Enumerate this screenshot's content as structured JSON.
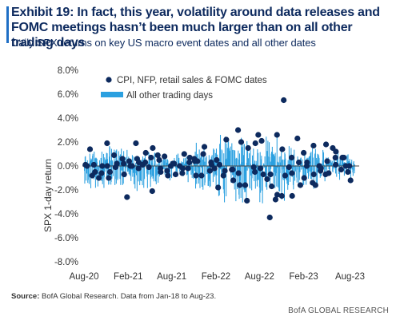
{
  "header": {
    "title": "Exhibit 19: In fact, this year, volatility around data releases and FOMC meetings hasn’t been much larger than on all other trading days",
    "subtitle": "Daily SPX returns on key US macro event dates and all other dates"
  },
  "footer": {
    "source_label": "Source:",
    "source_text": "BofA Global Research. Data from Jan-18 to Aug-23.",
    "brand": "BofA GLOBAL RESEARCH"
  },
  "colors": {
    "title": "#0d2a5e",
    "bars": "#2ba0e0",
    "dots": "#0d2a5e",
    "axis_text": "#333333",
    "zero_line": "#444444"
  },
  "chart_data": {
    "type": "scatter",
    "ylabel": "SPX 1-day return",
    "ylim": [
      -8,
      8
    ],
    "yticks": [
      -8,
      -6,
      -4,
      -2,
      0,
      2,
      4,
      6,
      8
    ],
    "ytick_labels": [
      "-8.0%",
      "-6.0%",
      "-4.0%",
      "-2.0%",
      "0.0%",
      "2.0%",
      "4.0%",
      "6.0%",
      "8.0%"
    ],
    "x_range": [
      "2020-08-01",
      "2023-08-31"
    ],
    "x_ticks": [
      "2020-08-01",
      "2021-02-01",
      "2021-08-01",
      "2022-02-01",
      "2022-08-01",
      "2023-02-01",
      "2023-08-01"
    ],
    "x_tick_labels": [
      "Aug-20",
      "Feb-21",
      "Aug-21",
      "Feb-22",
      "Aug-22",
      "Feb-23",
      "Aug-23"
    ],
    "grid": false,
    "legend": "top-left",
    "series": [
      {
        "name": "CPI, NFP, retail sales & FOMC dates",
        "kind": "dots",
        "points": [
          {
            "date": "2020-08-07",
            "value": 0.1
          },
          {
            "date": "2020-08-14",
            "value": 0.0
          },
          {
            "date": "2020-08-26",
            "value": 1.4
          },
          {
            "date": "2020-09-04",
            "value": -0.8
          },
          {
            "date": "2020-09-11",
            "value": 0.1
          },
          {
            "date": "2020-09-16",
            "value": -0.5
          },
          {
            "date": "2020-10-02",
            "value": -1.0
          },
          {
            "date": "2020-10-13",
            "value": -0.6
          },
          {
            "date": "2020-10-16",
            "value": 0.0
          },
          {
            "date": "2020-11-05",
            "value": 1.9
          },
          {
            "date": "2020-11-06",
            "value": 0.0
          },
          {
            "date": "2020-11-12",
            "value": -1.0
          },
          {
            "date": "2020-11-17",
            "value": -0.5
          },
          {
            "date": "2020-12-04",
            "value": 0.9
          },
          {
            "date": "2020-12-10",
            "value": -0.1
          },
          {
            "date": "2020-12-16",
            "value": 0.2
          },
          {
            "date": "2021-01-08",
            "value": 0.6
          },
          {
            "date": "2021-01-13",
            "value": 0.2
          },
          {
            "date": "2021-01-15",
            "value": -0.7
          },
          {
            "date": "2021-01-27",
            "value": -2.6
          },
          {
            "date": "2021-02-05",
            "value": 0.4
          },
          {
            "date": "2021-02-10",
            "value": 0.0
          },
          {
            "date": "2021-02-17",
            "value": 0.0
          },
          {
            "date": "2021-03-05",
            "value": 1.9
          },
          {
            "date": "2021-03-10",
            "value": 0.6
          },
          {
            "date": "2021-03-16",
            "value": -0.2
          },
          {
            "date": "2021-03-17",
            "value": 0.3
          },
          {
            "date": "2021-04-02",
            "value": 0.1
          },
          {
            "date": "2021-04-13",
            "value": 0.3
          },
          {
            "date": "2021-04-15",
            "value": 1.1
          },
          {
            "date": "2021-04-28",
            "value": -0.1
          },
          {
            "date": "2021-05-07",
            "value": 0.7
          },
          {
            "date": "2021-05-12",
            "value": -2.1
          },
          {
            "date": "2021-05-14",
            "value": 1.5
          },
          {
            "date": "2021-06-04",
            "value": 0.9
          },
          {
            "date": "2021-06-10",
            "value": 0.5
          },
          {
            "date": "2021-06-15",
            "value": -0.2
          },
          {
            "date": "2021-06-16",
            "value": -0.5
          },
          {
            "date": "2021-07-02",
            "value": 0.8
          },
          {
            "date": "2021-07-13",
            "value": -0.4
          },
          {
            "date": "2021-07-16",
            "value": -0.8
          },
          {
            "date": "2021-07-28",
            "value": 0.0
          },
          {
            "date": "2021-08-06",
            "value": 0.2
          },
          {
            "date": "2021-08-11",
            "value": 0.2
          },
          {
            "date": "2021-08-17",
            "value": -0.7
          },
          {
            "date": "2021-09-03",
            "value": 0.0
          },
          {
            "date": "2021-09-14",
            "value": -0.6
          },
          {
            "date": "2021-09-16",
            "value": -0.2
          },
          {
            "date": "2021-09-22",
            "value": 1.0
          },
          {
            "date": "2021-10-08",
            "value": -0.2
          },
          {
            "date": "2021-10-13",
            "value": 0.3
          },
          {
            "date": "2021-10-15",
            "value": 0.7
          },
          {
            "date": "2021-11-03",
            "value": 0.6
          },
          {
            "date": "2021-11-05",
            "value": 0.4
          },
          {
            "date": "2021-11-10",
            "value": -0.8
          },
          {
            "date": "2021-11-16",
            "value": 0.4
          },
          {
            "date": "2021-12-03",
            "value": -0.8
          },
          {
            "date": "2021-12-10",
            "value": 1.0
          },
          {
            "date": "2021-12-15",
            "value": 1.6
          },
          {
            "date": "2022-01-07",
            "value": -0.4
          },
          {
            "date": "2022-01-12",
            "value": 0.3
          },
          {
            "date": "2022-01-14",
            "value": 0.1
          },
          {
            "date": "2022-01-26",
            "value": -0.2
          },
          {
            "date": "2022-02-04",
            "value": 0.5
          },
          {
            "date": "2022-02-10",
            "value": -1.8
          },
          {
            "date": "2022-02-16",
            "value": 0.1
          },
          {
            "date": "2022-03-04",
            "value": -0.8
          },
          {
            "date": "2022-03-10",
            "value": -0.4
          },
          {
            "date": "2022-03-16",
            "value": 2.2
          },
          {
            "date": "2022-04-08",
            "value": -0.3
          },
          {
            "date": "2022-04-12",
            "value": -0.3
          },
          {
            "date": "2022-04-14",
            "value": -1.2
          },
          {
            "date": "2022-05-04",
            "value": 3.0
          },
          {
            "date": "2022-05-06",
            "value": -0.6
          },
          {
            "date": "2022-05-11",
            "value": -1.6
          },
          {
            "date": "2022-05-17",
            "value": 2.0
          },
          {
            "date": "2022-06-03",
            "value": -1.6
          },
          {
            "date": "2022-06-10",
            "value": -2.9
          },
          {
            "date": "2022-06-15",
            "value": 1.5
          },
          {
            "date": "2022-07-08",
            "value": -0.1
          },
          {
            "date": "2022-07-13",
            "value": -0.5
          },
          {
            "date": "2022-07-15",
            "value": 1.9
          },
          {
            "date": "2022-07-27",
            "value": 2.6
          },
          {
            "date": "2022-08-05",
            "value": -0.2
          },
          {
            "date": "2022-08-10",
            "value": 2.1
          },
          {
            "date": "2022-08-17",
            "value": -0.7
          },
          {
            "date": "2022-09-02",
            "value": -1.1
          },
          {
            "date": "2022-09-13",
            "value": -4.3
          },
          {
            "date": "2022-09-16",
            "value": -0.7
          },
          {
            "date": "2022-09-21",
            "value": -1.7
          },
          {
            "date": "2022-10-07",
            "value": -2.8
          },
          {
            "date": "2022-10-13",
            "value": 2.6
          },
          {
            "date": "2022-10-14",
            "value": -2.4
          },
          {
            "date": "2022-11-02",
            "value": -2.5
          },
          {
            "date": "2022-11-04",
            "value": 1.4
          },
          {
            "date": "2022-11-10",
            "value": 5.5
          },
          {
            "date": "2022-11-16",
            "value": -0.8
          },
          {
            "date": "2022-12-02",
            "value": -0.1
          },
          {
            "date": "2022-12-13",
            "value": 0.7
          },
          {
            "date": "2022-12-14",
            "value": -0.6
          },
          {
            "date": "2022-12-15",
            "value": -2.5
          },
          {
            "date": "2023-01-06",
            "value": 2.3
          },
          {
            "date": "2023-01-12",
            "value": 0.3
          },
          {
            "date": "2023-01-18",
            "value": -1.6
          },
          {
            "date": "2023-02-01",
            "value": 1.1
          },
          {
            "date": "2023-02-03",
            "value": -1.0
          },
          {
            "date": "2023-02-14",
            "value": 0.0
          },
          {
            "date": "2023-02-15",
            "value": 0.3
          },
          {
            "date": "2023-03-10",
            "value": -1.4
          },
          {
            "date": "2023-03-14",
            "value": 1.7
          },
          {
            "date": "2023-03-15",
            "value": -0.7
          },
          {
            "date": "2023-03-22",
            "value": -1.6
          },
          {
            "date": "2023-04-07",
            "value": 0.0
          },
          {
            "date": "2023-04-12",
            "value": -0.4
          },
          {
            "date": "2023-04-14",
            "value": -0.2
          },
          {
            "date": "2023-05-03",
            "value": -0.7
          },
          {
            "date": "2023-05-05",
            "value": 1.8
          },
          {
            "date": "2023-05-10",
            "value": 0.4
          },
          {
            "date": "2023-05-16",
            "value": -0.6
          },
          {
            "date": "2023-06-02",
            "value": 1.5
          },
          {
            "date": "2023-06-13",
            "value": 0.7
          },
          {
            "date": "2023-06-14",
            "value": 0.1
          },
          {
            "date": "2023-06-15",
            "value": 1.2
          },
          {
            "date": "2023-07-07",
            "value": -0.3
          },
          {
            "date": "2023-07-12",
            "value": 0.7
          },
          {
            "date": "2023-07-18",
            "value": 0.7
          },
          {
            "date": "2023-07-26",
            "value": 0.0
          },
          {
            "date": "2023-08-04",
            "value": -0.5
          },
          {
            "date": "2023-08-10",
            "value": 0.0
          },
          {
            "date": "2023-08-15",
            "value": -1.2
          }
        ]
      },
      {
        "name": "All other trading days",
        "kind": "bars",
        "segments": [
          {
            "start": "2020-08-01",
            "end": "2020-10-31",
            "neg_min": -1.2,
            "neg_max": -2.2,
            "pos_min": 0.6,
            "pos_max": 1.4
          },
          {
            "start": "2020-11-01",
            "end": "2021-01-31",
            "neg_min": -1.2,
            "neg_max": -2.2,
            "pos_min": 0.7,
            "pos_max": 1.8
          },
          {
            "start": "2021-02-01",
            "end": "2021-05-31",
            "neg_min": -1.0,
            "neg_max": -2.3,
            "pos_min": 0.6,
            "pos_max": 1.5
          },
          {
            "start": "2021-06-01",
            "end": "2021-10-31",
            "neg_min": -0.7,
            "neg_max": -1.5,
            "pos_min": 0.4,
            "pos_max": 1.2
          },
          {
            "start": "2021-11-01",
            "end": "2022-01-31",
            "neg_min": -1.3,
            "neg_max": -2.6,
            "pos_min": 0.7,
            "pos_max": 2.2
          },
          {
            "start": "2022-02-01",
            "end": "2022-06-30",
            "neg_min": -1.8,
            "neg_max": -4.1,
            "pos_min": 1.2,
            "pos_max": 2.8
          },
          {
            "start": "2022-07-01",
            "end": "2022-12-31",
            "neg_min": -1.5,
            "neg_max": -3.4,
            "pos_min": 1.0,
            "pos_max": 2.6
          },
          {
            "start": "2023-01-01",
            "end": "2023-04-30",
            "neg_min": -1.0,
            "neg_max": -2.0,
            "pos_min": 0.7,
            "pos_max": 1.9
          },
          {
            "start": "2023-05-01",
            "end": "2023-08-31",
            "neg_min": -0.6,
            "neg_max": -1.4,
            "pos_min": 0.4,
            "pos_max": 1.2
          }
        ]
      }
    ]
  }
}
